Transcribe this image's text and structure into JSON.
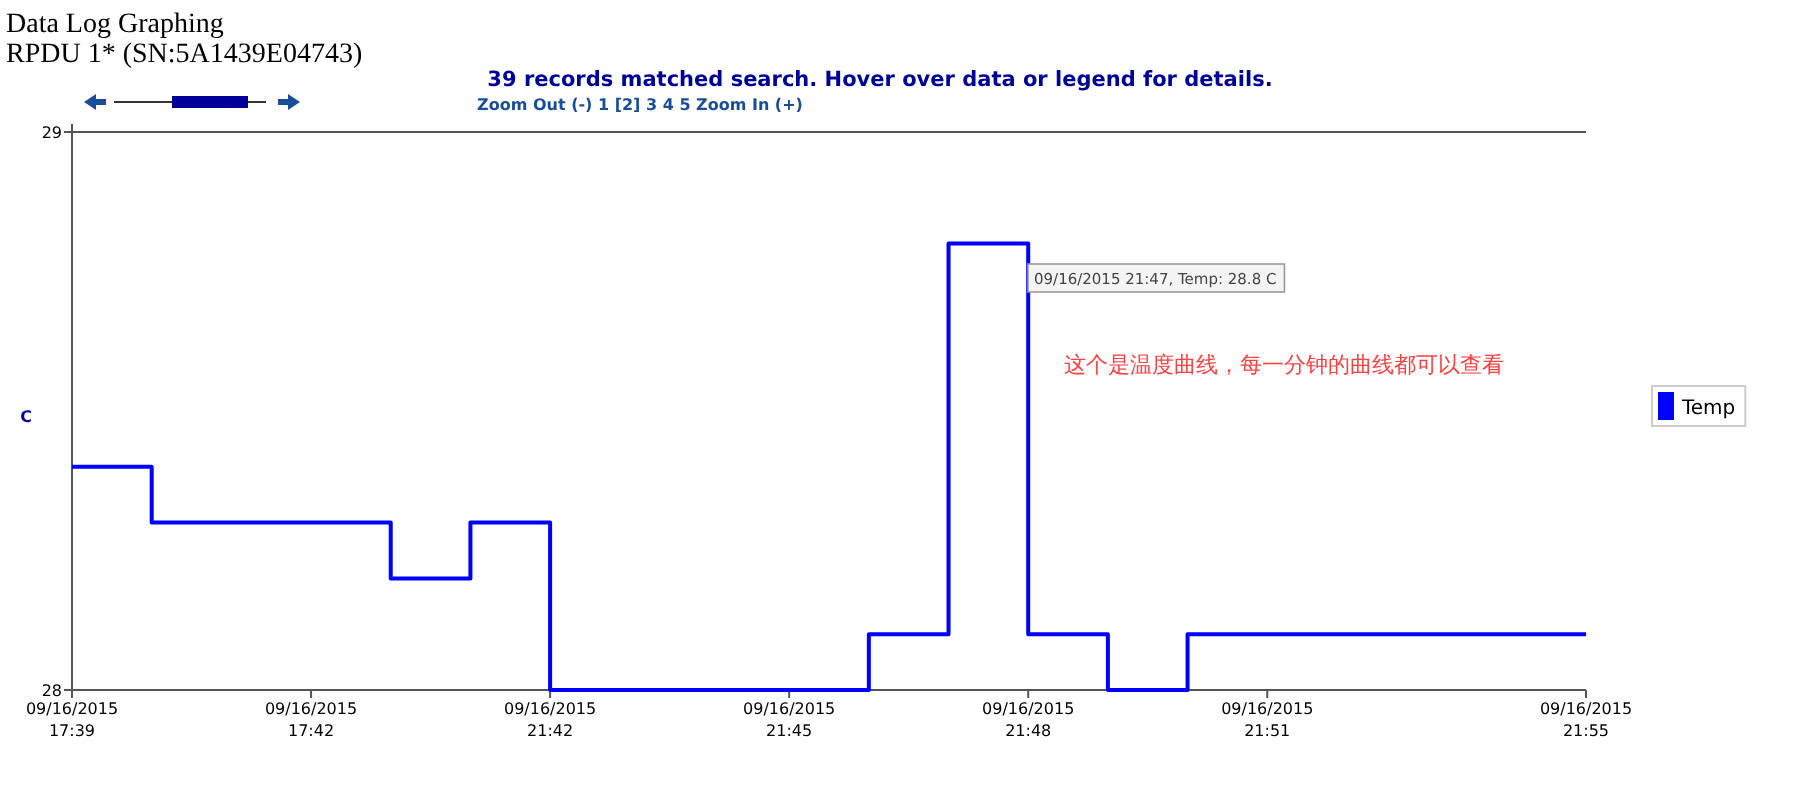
{
  "chart_data": {
    "type": "step",
    "title": "Data Log Graphing",
    "subtitle": "RPDU 1* (SN:5A1439E04743)",
    "ylabel": "C",
    "categories": [
      "09/16/2015 17:39",
      null,
      null,
      "09/16/2015 17:42",
      null,
      null,
      "09/16/2015 21:42",
      null,
      null,
      "09/16/2015 21:45",
      null,
      null,
      "09/16/2015 21:48",
      null,
      null,
      "09/16/2015 21:51",
      null,
      null,
      null,
      "09/16/2015 21:55"
    ],
    "series": [
      {
        "name": "Temp",
        "color": "#0000ff",
        "values": [
          28.4,
          28.3,
          28.3,
          28.3,
          28.2,
          28.3,
          28.0,
          28.0,
          28.0,
          28.0,
          28.1,
          28.8,
          28.1,
          28.0,
          28.1,
          28.1,
          28.1,
          28.1,
          28.1,
          28.1
        ]
      }
    ],
    "ylim": [
      28,
      29
    ],
    "yticks": [
      28,
      29
    ],
    "legend": "right",
    "annotations": [
      "39 records matched search. Hover over data or legend for details.",
      "Zoom Out (-)  1  [2]  3  4  5  Zoom In (+)",
      "09/16/2015 21:47, Temp: 28.8 C",
      "这个是温度曲线，每一分钟的曲线都可以查看"
    ]
  }
}
